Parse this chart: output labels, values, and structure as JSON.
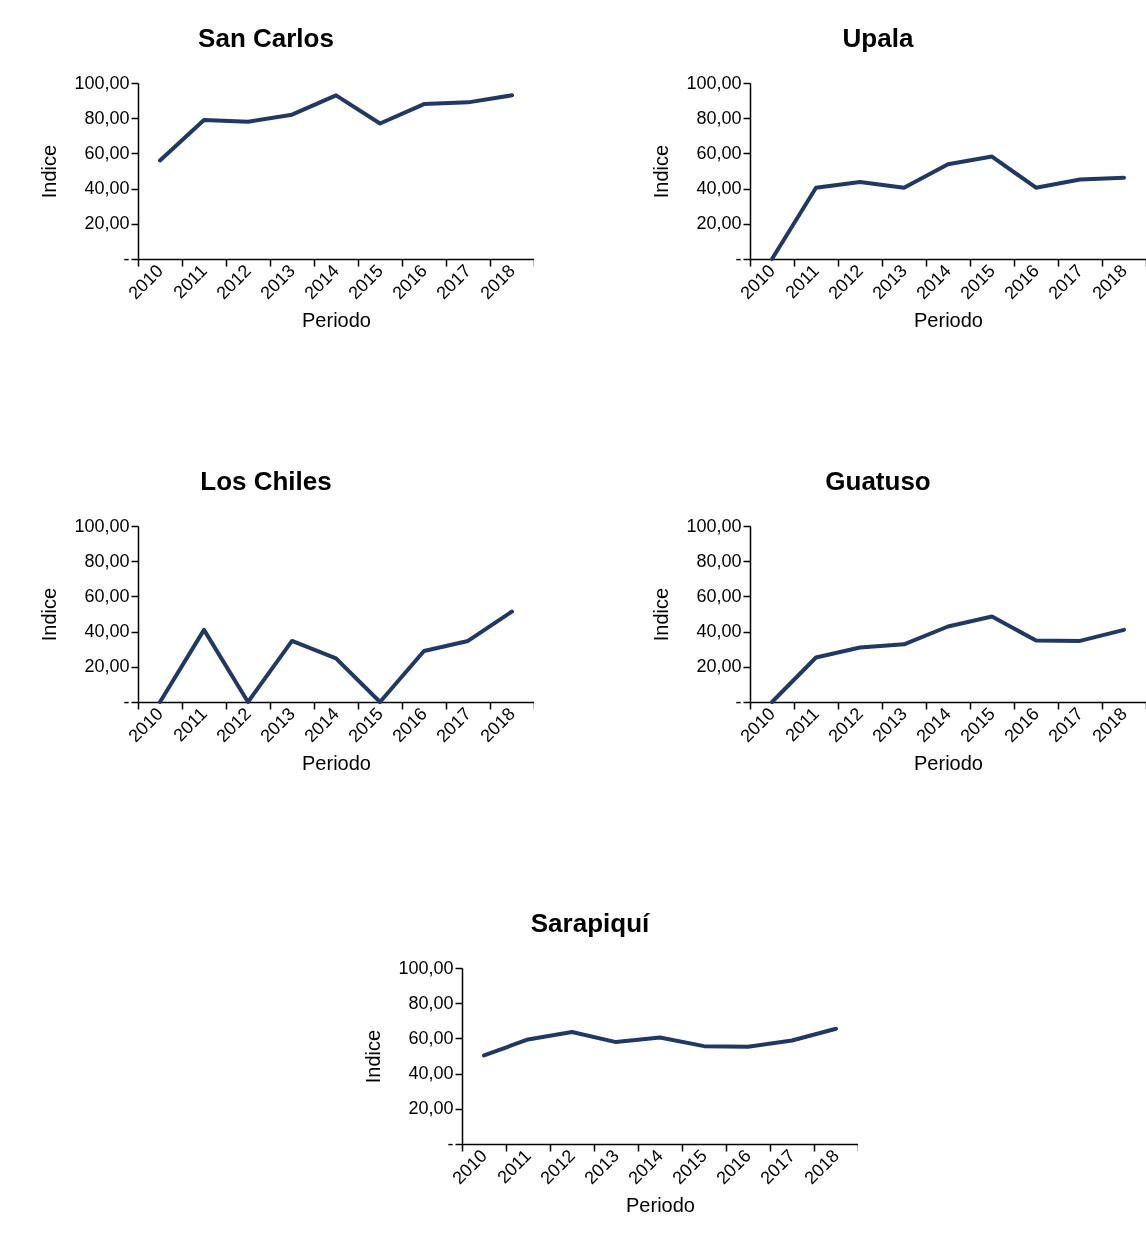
{
  "chart_data": [
    {
      "type": "line",
      "title": "San Carlos",
      "xlabel": "Periodo",
      "ylabel": "Indice",
      "categories": [
        "2010",
        "2011",
        "2012",
        "2013",
        "2014",
        "2015",
        "2016",
        "2017",
        "2018"
      ],
      "series": [
        {
          "color": "#203864",
          "values": [
            56,
            79,
            78,
            82,
            93,
            77,
            88,
            89,
            93
          ]
        }
      ],
      "ylim": [
        0,
        100
      ],
      "yticks": [
        {
          "value": 0,
          "label": "-"
        },
        {
          "value": 20,
          "label": "20,00"
        },
        {
          "value": 40,
          "label": "40,00"
        },
        {
          "value": 60,
          "label": "60,00"
        },
        {
          "value": 80,
          "label": "80,00"
        },
        {
          "value": 100,
          "label": "100,00"
        }
      ]
    },
    {
      "type": "line",
      "title": "Upala",
      "xlabel": "Periodo",
      "ylabel": "Indice",
      "categories": [
        "2010",
        "2011",
        "2012",
        "2013",
        "2014",
        "2015",
        "2016",
        "2017",
        "2018"
      ],
      "series": [
        {
          "color": "#203864",
          "values": [
            0,
            40.5,
            43.7,
            40.5,
            53.8,
            58.2,
            40.5,
            45.2,
            46.2
          ]
        }
      ],
      "ylim": [
        0,
        100
      ],
      "yticks": [
        {
          "value": 0,
          "label": "-"
        },
        {
          "value": 20,
          "label": "20,00"
        },
        {
          "value": 40,
          "label": "40,00"
        },
        {
          "value": 60,
          "label": "60,00"
        },
        {
          "value": 80,
          "label": "80,00"
        },
        {
          "value": 100,
          "label": "100,00"
        }
      ]
    },
    {
      "type": "line",
      "title": "Los Chiles",
      "xlabel": "Periodo",
      "ylabel": "Indice",
      "categories": [
        "2010",
        "2011",
        "2012",
        "2013",
        "2014",
        "2015",
        "2016",
        "2017",
        "2018"
      ],
      "series": [
        {
          "color": "#203864",
          "values": [
            0,
            41,
            0,
            34.7,
            24.8,
            0,
            29,
            34.7,
            51.4
          ]
        }
      ],
      "ylim": [
        0,
        100
      ],
      "yticks": [
        {
          "value": 0,
          "label": "-"
        },
        {
          "value": 20,
          "label": "20,00"
        },
        {
          "value": 40,
          "label": "40,00"
        },
        {
          "value": 60,
          "label": "60,00"
        },
        {
          "value": 80,
          "label": "80,00"
        },
        {
          "value": 100,
          "label": "100,00"
        }
      ]
    },
    {
      "type": "line",
      "title": "Guatuso",
      "xlabel": "Periodo",
      "ylabel": "Indice",
      "categories": [
        "2010",
        "2011",
        "2012",
        "2013",
        "2014",
        "2015",
        "2016",
        "2017",
        "2018"
      ],
      "series": [
        {
          "color": "#203864",
          "values": [
            0,
            25.3,
            31,
            32.8,
            42.9,
            48.6,
            34.9,
            34.7,
            41
          ]
        }
      ],
      "ylim": [
        0,
        100
      ],
      "yticks": [
        {
          "value": 0,
          "label": "-"
        },
        {
          "value": 20,
          "label": "20,00"
        },
        {
          "value": 40,
          "label": "40,00"
        },
        {
          "value": 60,
          "label": "60,00"
        },
        {
          "value": 80,
          "label": "80,00"
        },
        {
          "value": 100,
          "label": "100,00"
        }
      ]
    },
    {
      "type": "line",
      "title": "Sarapiquí",
      "xlabel": "Periodo",
      "ylabel": "Indice",
      "categories": [
        "2010",
        "2011",
        "2012",
        "2013",
        "2014",
        "2015",
        "2016",
        "2017",
        "2018"
      ],
      "series": [
        {
          "color": "#203864",
          "values": [
            50.3,
            59.4,
            63.6,
            57.9,
            60.5,
            55.6,
            55.2,
            58.8,
            65.5
          ]
        }
      ],
      "ylim": [
        0,
        100
      ],
      "yticks": [
        {
          "value": 0,
          "label": "-"
        },
        {
          "value": 20,
          "label": "20,00"
        },
        {
          "value": 40,
          "label": "40,00"
        },
        {
          "value": 60,
          "label": "60,00"
        },
        {
          "value": 80,
          "label": "80,00"
        },
        {
          "value": 100,
          "label": "100,00"
        }
      ]
    }
  ]
}
